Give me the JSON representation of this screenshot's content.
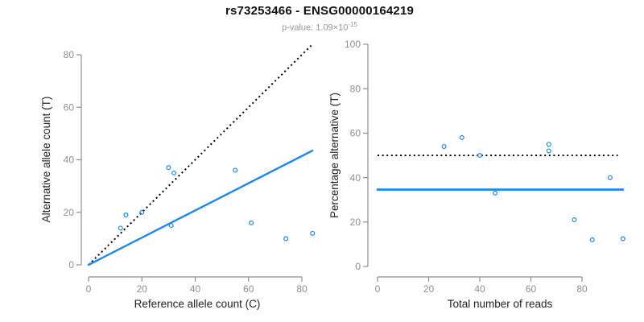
{
  "header": {
    "title": "rs73253466 - ENSG00000164219",
    "subtitle_prefix": "p-value: 1.09×10",
    "subtitle_exponent": "-15"
  },
  "colors": {
    "line_blue": "#2187E6",
    "dotted_black": "#000000",
    "axis_gray": "#8F8F8F",
    "tick_label_gray": "#8F8F8F",
    "axis_title_black": "#222222",
    "subtitle_gray": "#969696",
    "title_black": "#111111",
    "background": "#FFFFFF"
  },
  "chart_data": [
    {
      "type": "scatter",
      "name": "allele-counts-scatter",
      "xlabel": "Reference allele count (C)",
      "ylabel": "Alternative allele count (T)",
      "xticks": [
        0,
        20,
        40,
        60,
        80
      ],
      "yticks": [
        0,
        20,
        40,
        60,
        80
      ],
      "xlim": [
        0,
        84
      ],
      "ylim": [
        0,
        84
      ],
      "grid": false,
      "points": [
        [
          12,
          14
        ],
        [
          14,
          19
        ],
        [
          20,
          20
        ],
        [
          30,
          37
        ],
        [
          31,
          15
        ],
        [
          32,
          35
        ],
        [
          55,
          36
        ],
        [
          61,
          16
        ],
        [
          74,
          10
        ],
        [
          84,
          12
        ]
      ],
      "lines": [
        {
          "name": "identity-line",
          "style": "dotted",
          "color_key": "dotted_black",
          "x": [
            0,
            83.5
          ],
          "y": [
            0,
            83.5
          ]
        },
        {
          "name": "fit-line",
          "style": "solid",
          "color_key": "line_blue",
          "x": [
            0,
            84
          ],
          "y": [
            0,
            43.5
          ]
        }
      ]
    },
    {
      "type": "scatter",
      "name": "percentage-alternative-scatter",
      "xlabel": "Total number of reads",
      "ylabel": "Percentage alternative (T)",
      "xticks": [
        0,
        20,
        40,
        60,
        80
      ],
      "yticks": [
        0,
        20,
        40,
        60,
        80,
        100
      ],
      "xlim": [
        0,
        96
      ],
      "ylim": [
        0,
        100
      ],
      "grid": false,
      "points": [
        [
          26,
          54
        ],
        [
          33,
          58
        ],
        [
          40,
          50
        ],
        [
          46,
          33
        ],
        [
          67,
          52
        ],
        [
          67,
          55
        ],
        [
          77,
          21
        ],
        [
          84,
          12
        ],
        [
          91,
          40
        ],
        [
          96,
          12.5
        ]
      ],
      "lines": [
        {
          "name": "reference-50pct-line",
          "style": "dotted",
          "color_key": "dotted_black",
          "x": [
            0,
            94
          ],
          "y": [
            50,
            50
          ]
        },
        {
          "name": "fit-line",
          "style": "solid",
          "color_key": "line_blue",
          "x": [
            0,
            96
          ],
          "y": [
            34.6,
            34.6
          ]
        }
      ]
    }
  ]
}
